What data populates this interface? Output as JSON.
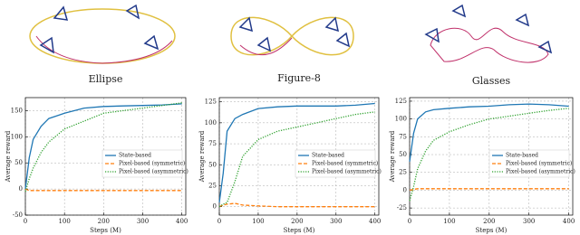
{
  "chart_data": [
    {
      "type": "line",
      "title": "Ellipse",
      "xlabel": "Steps (M)",
      "ylabel": "Average reward",
      "x": [
        0,
        10,
        20,
        40,
        60,
        100,
        150,
        200,
        250,
        300,
        350,
        400
      ],
      "xlim": [
        0,
        410
      ],
      "xticks": [
        0,
        100,
        200,
        300,
        400
      ],
      "ylim": [
        -50,
        175
      ],
      "yticks": [
        -50,
        0,
        50,
        100,
        150
      ],
      "grid": true,
      "legend": "center right",
      "series": [
        {
          "name": "State-based",
          "color": "#1f77b4",
          "style": "solid",
          "values": [
            0,
            60,
            95,
            120,
            135,
            145,
            155,
            158,
            159,
            160,
            161,
            163
          ]
        },
        {
          "name": "Pixel-based (symmetric)",
          "color": "#ff7f0e",
          "style": "dash",
          "values": [
            0,
            -3,
            -3,
            -3,
            -3,
            -3,
            -3,
            -3,
            -3,
            -3,
            -3,
            -3
          ]
        },
        {
          "name": "Pixel-based (asymmetric)",
          "color": "#2ca02c",
          "style": "dot",
          "values": [
            -5,
            20,
            40,
            70,
            90,
            115,
            130,
            145,
            150,
            155,
            160,
            165
          ]
        }
      ]
    },
    {
      "type": "line",
      "title": "Figure-8",
      "xlabel": "Steps (M)",
      "ylabel": "Average reward",
      "x": [
        0,
        10,
        20,
        40,
        60,
        100,
        150,
        200,
        250,
        300,
        350,
        400
      ],
      "xlim": [
        0,
        410
      ],
      "xticks": [
        0,
        100,
        200,
        300,
        400
      ],
      "ylim": [
        -10,
        130
      ],
      "yticks": [
        0,
        25,
        50,
        75,
        100,
        125
      ],
      "grid": true,
      "legend": "center right",
      "series": [
        {
          "name": "State-based",
          "color": "#1f77b4",
          "style": "solid",
          "values": [
            5,
            40,
            90,
            105,
            110,
            117,
            119,
            120,
            120,
            120,
            121,
            123
          ]
        },
        {
          "name": "Pixel-based (symmetric)",
          "color": "#ff7f0e",
          "style": "dash",
          "values": [
            0,
            2,
            3,
            4,
            2,
            1,
            0,
            0,
            0,
            0,
            0,
            0
          ]
        },
        {
          "name": "Pixel-based (asymmetric)",
          "color": "#2ca02c",
          "style": "dot",
          "values": [
            0,
            3,
            5,
            30,
            60,
            80,
            90,
            95,
            100,
            105,
            110,
            113
          ]
        }
      ]
    },
    {
      "type": "line",
      "title": "Glasses",
      "xlabel": "Steps (M)",
      "ylabel": "Average reward",
      "x": [
        0,
        10,
        20,
        40,
        60,
        100,
        150,
        200,
        250,
        300,
        350,
        400
      ],
      "xlim": [
        0,
        410
      ],
      "xticks": [
        0,
        100,
        200,
        300,
        400
      ],
      "ylim": [
        -35,
        130
      ],
      "yticks": [
        -25,
        0,
        25,
        50,
        75,
        100,
        125
      ],
      "grid": true,
      "legend": "center right",
      "series": [
        {
          "name": "State-based",
          "color": "#1f77b4",
          "style": "solid",
          "values": [
            40,
            80,
            100,
            110,
            113,
            115,
            117,
            118,
            120,
            121,
            120,
            118
          ]
        },
        {
          "name": "Pixel-based (symmetric)",
          "color": "#ff7f0e",
          "style": "dash",
          "values": [
            0,
            1,
            2,
            2,
            2,
            2,
            2,
            2,
            2,
            2,
            2,
            2
          ]
        },
        {
          "name": "Pixel-based (asymmetric)",
          "color": "#2ca02c",
          "style": "dot",
          "values": [
            -15,
            5,
            30,
            55,
            70,
            82,
            92,
            100,
            104,
            108,
            112,
            115
          ]
        }
      ]
    }
  ]
}
